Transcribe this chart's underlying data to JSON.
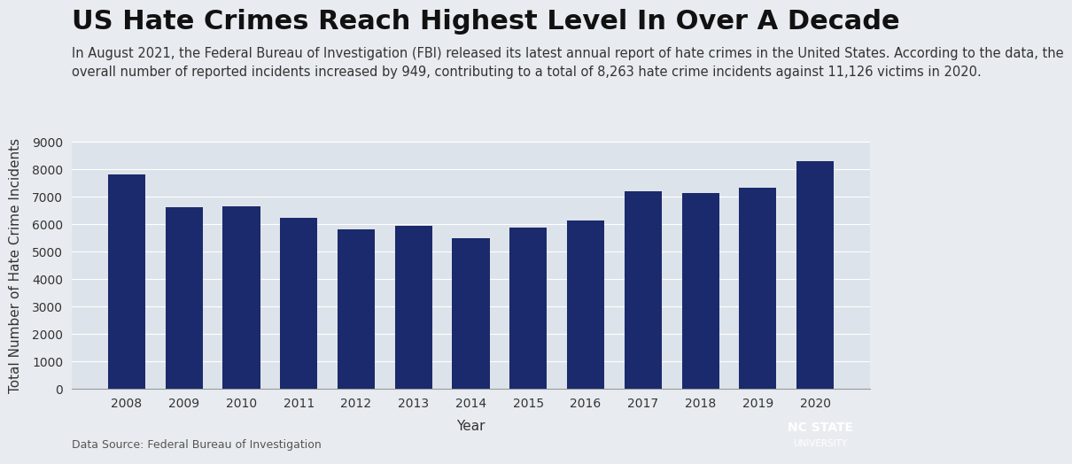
{
  "title": "US Hate Crimes Reach Highest Level In Over A Decade",
  "subtitle_line1": "In August 2021, the Federal Bureau of Investigation (FBI) released its latest annual report of hate crimes in the United States. According to the data, the",
  "subtitle_line2": "overall number of reported incidents increased by 949, contributing to a total of 8,263 hate crime incidents against 11,126 victims in 2020.",
  "years": [
    2008,
    2009,
    2010,
    2011,
    2012,
    2013,
    2014,
    2015,
    2016,
    2017,
    2018,
    2019,
    2020
  ],
  "values": [
    7783,
    6604,
    6628,
    6222,
    5796,
    5928,
    5479,
    5850,
    6121,
    7175,
    7120,
    7314,
    8263
  ],
  "bar_color": "#1a2a6c",
  "ylabel": "Total Number of Hate Crime Incidents",
  "xlabel": "Year",
  "ylim": [
    0,
    9000
  ],
  "yticks": [
    0,
    1000,
    2000,
    3000,
    4000,
    5000,
    6000,
    7000,
    8000,
    9000
  ],
  "data_source": "Data Source: Federal Bureau of Investigation",
  "background_color": "#e8ecf0",
  "plot_bg_color": "#dde3ea",
  "nc_state_red": "#CC0000",
  "nc_state_text_line1": "NC STATE",
  "nc_state_text_line2": "UNIVERSITY",
  "title_fontsize": 22,
  "subtitle_fontsize": 10.5,
  "axis_label_fontsize": 11,
  "tick_fontsize": 10
}
